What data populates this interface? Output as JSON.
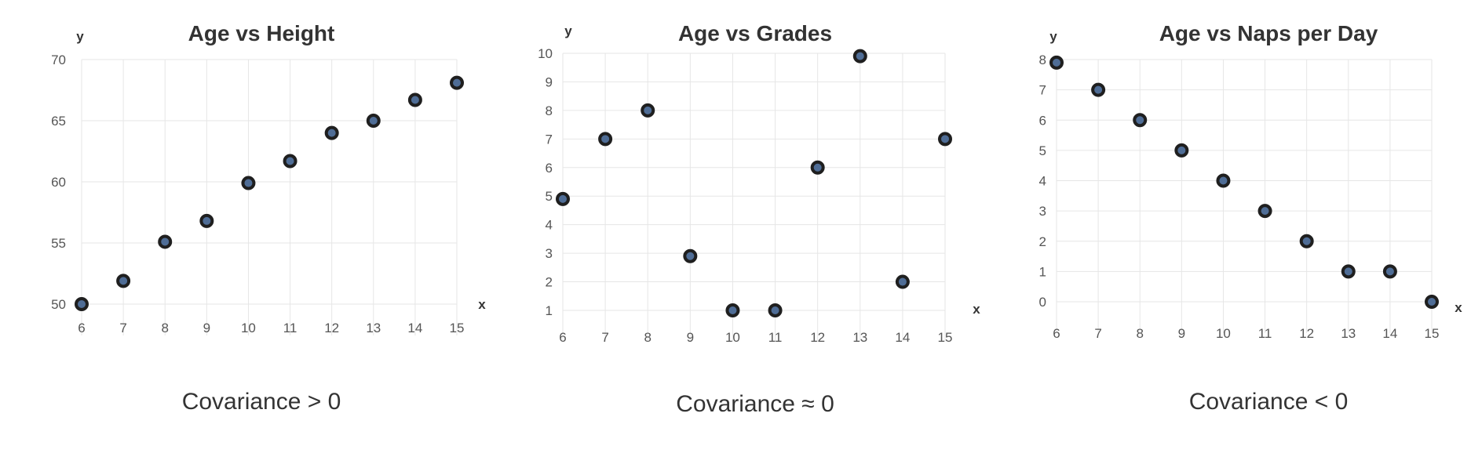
{
  "chart_data": [
    {
      "type": "scatter",
      "title": "Age vs Height",
      "xlabel": "x",
      "ylabel": "y",
      "xlim": [
        6,
        15
      ],
      "ylim": [
        50,
        70
      ],
      "xticks": [
        "6",
        "7",
        "8",
        "9",
        "10",
        "11",
        "12",
        "13",
        "14",
        "15"
      ],
      "yticks": [
        "50",
        "55",
        "60",
        "65",
        "70"
      ],
      "x": [
        6,
        7,
        8,
        9,
        10,
        11,
        12,
        13,
        14,
        15
      ],
      "y": [
        50,
        51.9,
        55.1,
        56.8,
        59.9,
        61.7,
        64.0,
        65.0,
        66.7,
        68.1
      ],
      "grid": true,
      "caption": "Covariance > 0"
    },
    {
      "type": "scatter",
      "title": "Age vs Grades",
      "xlabel": "x",
      "ylabel": "y",
      "xlim": [
        6,
        15
      ],
      "ylim": [
        1,
        10
      ],
      "xticks": [
        "6",
        "7",
        "8",
        "9",
        "10",
        "11",
        "12",
        "13",
        "14",
        "15"
      ],
      "yticks": [
        "1",
        "2",
        "3",
        "4",
        "5",
        "6",
        "7",
        "8",
        "9",
        "10"
      ],
      "x": [
        6,
        7,
        8,
        9,
        10,
        11,
        12,
        13,
        14,
        15
      ],
      "y": [
        4.9,
        7,
        8,
        2.9,
        1,
        1,
        6,
        9.9,
        2,
        7
      ],
      "grid": true,
      "caption": "Covariance ≈ 0"
    },
    {
      "type": "scatter",
      "title": "Age vs Naps per Day",
      "xlabel": "x",
      "ylabel": "y",
      "xlim": [
        6,
        15
      ],
      "ylim": [
        0,
        8
      ],
      "xticks": [
        "6",
        "7",
        "8",
        "9",
        "10",
        "11",
        "12",
        "13",
        "14",
        "15"
      ],
      "yticks": [
        "0",
        "1",
        "2",
        "3",
        "4",
        "5",
        "6",
        "7",
        "8"
      ],
      "x": [
        6,
        7,
        8,
        9,
        10,
        11,
        12,
        13,
        14,
        15
      ],
      "y": [
        7.9,
        7,
        6,
        5,
        4,
        3,
        2,
        1,
        1,
        0
      ],
      "grid": true,
      "caption": "Covariance < 0"
    }
  ],
  "colors": {
    "marker_fill": "#4f6d96",
    "marker_edge": "#1f1f1f",
    "grid": "#e6e6e6",
    "text": "#333333"
  }
}
